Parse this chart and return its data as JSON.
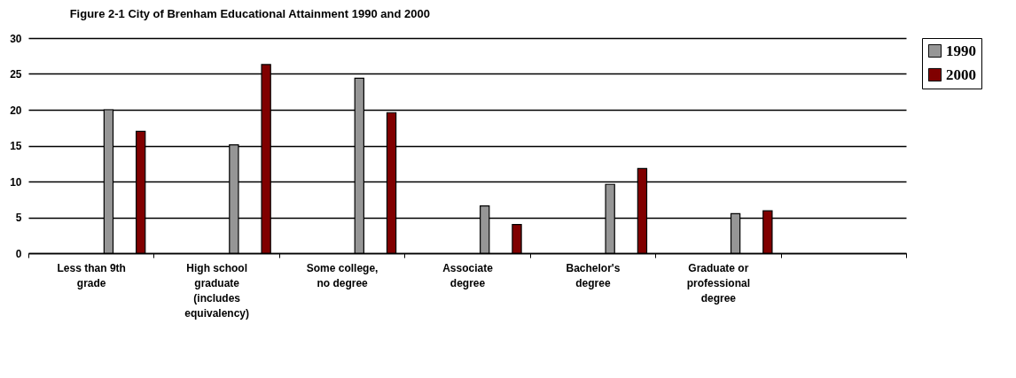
{
  "chart_data": {
    "type": "bar",
    "title": "Figure 2-1 City of Brenham Educational Attainment 1990 and 2000",
    "categories": [
      "Less than 9th grade",
      "High school graduate (includes equivalency)",
      "Some college, no degree",
      "Associate degree",
      "Bachelor's degree",
      "Graduate or professional degree",
      null
    ],
    "series": [
      {
        "name": "1990",
        "color": "#969696",
        "values": [
          20.0,
          15.1,
          24.4,
          6.6,
          9.6,
          5.5,
          null
        ]
      },
      {
        "name": "2000",
        "color": "#800000",
        "values": [
          17.0,
          26.3,
          19.6,
          4.0,
          11.8,
          5.9,
          null
        ]
      }
    ],
    "ylim": [
      0,
      30
    ],
    "yticks": [
      0,
      5,
      10,
      15,
      20,
      25,
      30
    ],
    "grid": "y",
    "legend": "right"
  }
}
